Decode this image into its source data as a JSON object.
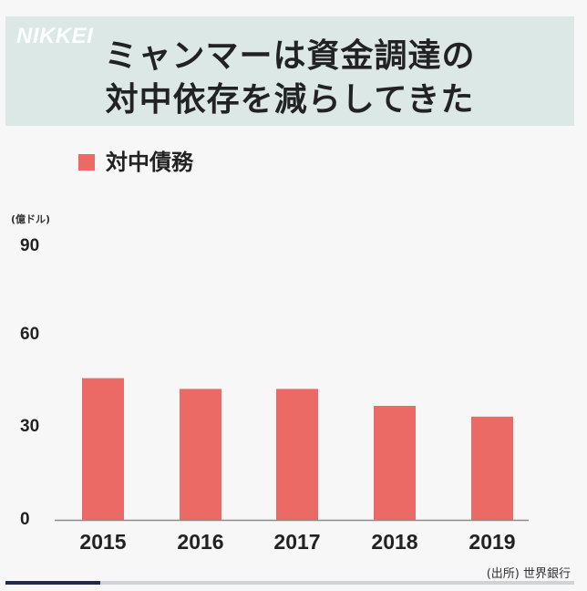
{
  "header": {
    "brand": "NIKKEI",
    "title_line1": "ミャンマーは資金調達の",
    "title_line2": "対中依存を減らしてきた"
  },
  "legend": {
    "label": "対中債務"
  },
  "unit_label": "(億ドル)",
  "source": "(出所) 世界銀行",
  "colors": {
    "bar": "#ec6a66",
    "header_bg": "#dce8e6",
    "axis": "#8a8a8a"
  },
  "chart_data": {
    "type": "bar",
    "categories": [
      "2015",
      "2016",
      "2017",
      "2018",
      "2019"
    ],
    "series": [
      {
        "name": "対中債務",
        "values": [
          46,
          42.5,
          42.5,
          37,
          33.5
        ]
      }
    ],
    "ylim": [
      0,
      90
    ],
    "yticks": [
      "90",
      "60",
      "30",
      "0"
    ],
    "ylabel": "(億ドル)",
    "grid": false,
    "legend_position": "top-left"
  }
}
